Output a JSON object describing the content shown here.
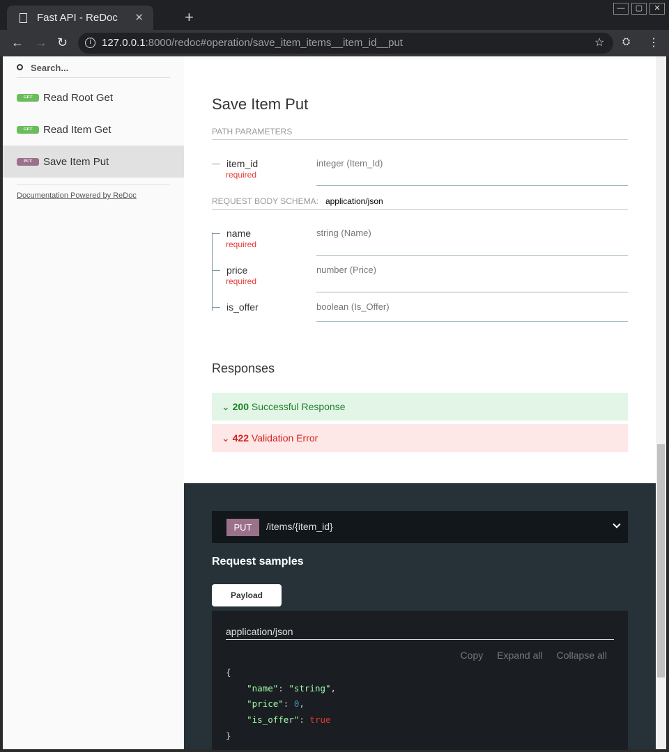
{
  "browser": {
    "tab_title": "Fast API - ReDoc",
    "url_host": "127.0.0.1",
    "url_rest": ":8000/redoc#operation/save_item_items__item_id__put"
  },
  "sidebar": {
    "search_placeholder": "Search...",
    "items": [
      {
        "method": "GET",
        "label": "Read Root Get",
        "color": "#6bbd5b"
      },
      {
        "method": "GET",
        "label": "Read Item Get",
        "color": "#6bbd5b"
      },
      {
        "method": "PUT",
        "label": "Save Item Put",
        "color": "#9b708b",
        "active": true
      }
    ],
    "powered": "Documentation Powered by ReDoc"
  },
  "operation": {
    "title": "Save Item Put",
    "path_params_label": "PATH PARAMETERS",
    "path_params": [
      {
        "name": "item_id",
        "required": "required",
        "type": "integer (Item_Id)"
      }
    ],
    "body_label": "REQUEST BODY SCHEMA:",
    "body_type": "application/json",
    "body_params": [
      {
        "name": "name",
        "required": "required",
        "type": "string (Name)"
      },
      {
        "name": "price",
        "required": "required",
        "type": "number (Price)"
      },
      {
        "name": "is_offer",
        "type": "boolean (Is_Offer)"
      }
    ],
    "responses_title": "Responses",
    "responses": [
      {
        "code": "200",
        "text": "Successful Response",
        "color": "#1d8127",
        "bg": "#e3f5e6"
      },
      {
        "code": "422",
        "text": "Validation Error",
        "color": "#d41f1c",
        "bg": "#fde7e7"
      }
    ]
  },
  "right": {
    "method": "PUT",
    "path": "/items/{item_id}",
    "samples_title": "Request samples",
    "tab": "Payload",
    "content_type": "application/json",
    "copy": "Copy",
    "expand": "Expand all",
    "collapse": "Collapse all",
    "json": {
      "open": "{",
      "close": "}",
      "k1": "\"name\"",
      "v1": "\"string\"",
      "k2": "\"price\"",
      "v2": "0",
      "k3": "\"is_offer\"",
      "v3": "true"
    }
  }
}
